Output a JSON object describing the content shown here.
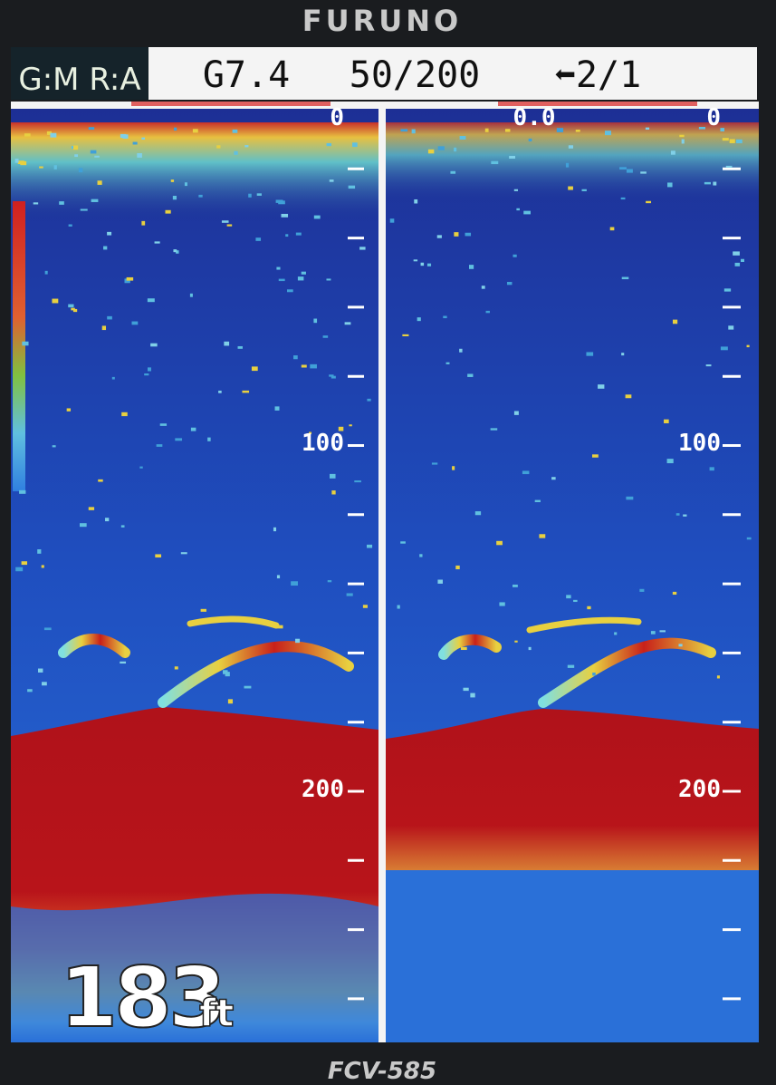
{
  "brand": "FURUNO",
  "header": {
    "mode": "G:M R:A",
    "gain": "G7.4",
    "range": "50/200",
    "advance": "⬅2/1"
  },
  "left_panel": {
    "scale_labels": [
      "0",
      "100",
      "200"
    ]
  },
  "right_panel": {
    "top_label": "0.0",
    "scale_labels": [
      "0",
      "100",
      "200"
    ]
  },
  "depth": {
    "value": "183",
    "unit": "ft"
  },
  "model": "FCV-585"
}
